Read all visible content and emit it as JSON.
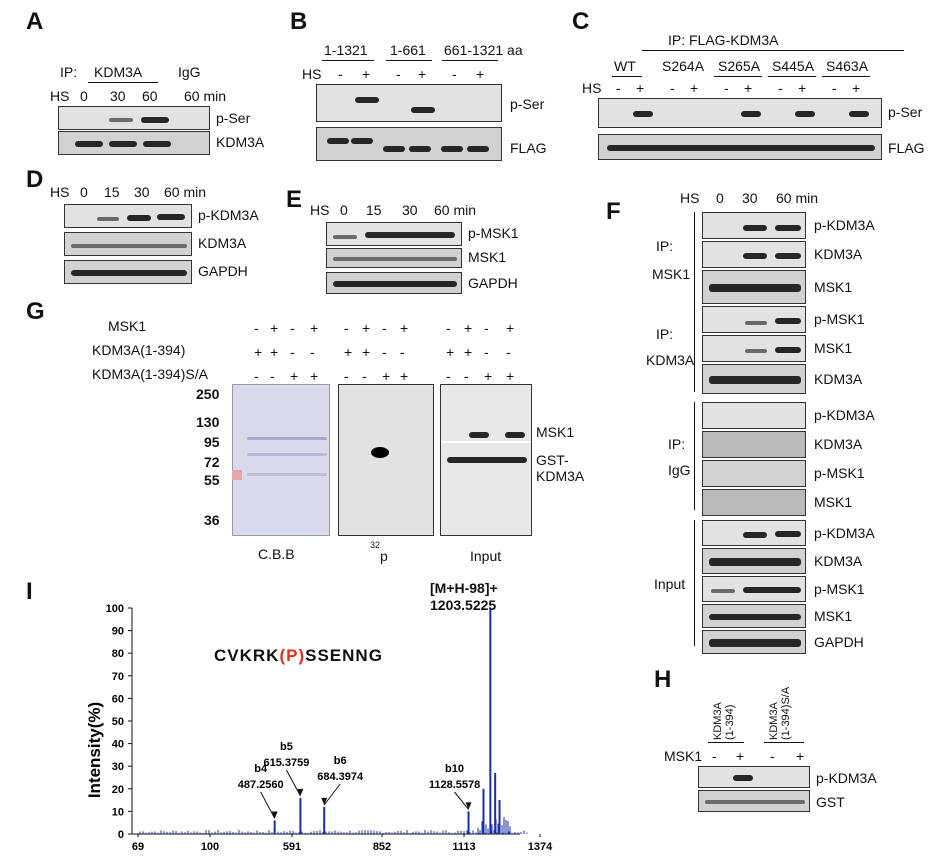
{
  "panels": {
    "A": {
      "letter": "A",
      "ip_label": "IP:",
      "ip_target": "KDM3A",
      "ip_ctrl": "IgG",
      "hs": "HS",
      "times": [
        "0",
        "30",
        "60",
        "60 min"
      ],
      "rows": [
        "p-Ser",
        "KDM3A"
      ]
    },
    "B": {
      "letter": "B",
      "constructs": [
        "1-1321",
        "1-661",
        "661-1321 aa"
      ],
      "hs": "HS",
      "signs": [
        "-",
        "+",
        "-",
        "+",
        "-",
        "+"
      ],
      "rows": [
        "p-Ser",
        "FLAG"
      ]
    },
    "C": {
      "letter": "C",
      "ip": "IP: FLAG-KDM3A",
      "mutants": [
        "WT",
        "S264A",
        "S265A",
        "S445A",
        "S463A"
      ],
      "hs": "HS",
      "signs": [
        "-",
        "+",
        "-",
        "+",
        "-",
        "+",
        "-",
        "+",
        "-",
        "+"
      ],
      "rows": [
        "p-Ser",
        "FLAG"
      ]
    },
    "D": {
      "letter": "D",
      "hs": "HS",
      "times": [
        "0",
        "15",
        "30",
        "60 min"
      ],
      "rows": [
        "p-KDM3A",
        "KDM3A",
        "GAPDH"
      ]
    },
    "E": {
      "letter": "E",
      "hs": "HS",
      "times": [
        "0",
        "15",
        "30",
        "60 min"
      ],
      "rows": [
        "p-MSK1",
        "MSK1",
        "GAPDH"
      ]
    },
    "F": {
      "letter": "F",
      "hs": "HS",
      "times": [
        "0",
        "30",
        "60 min"
      ],
      "groups": [
        {
          "ip1": "IP:",
          "ip2": "MSK1",
          "rows": [
            "p-KDM3A",
            "KDM3A",
            "MSK1"
          ]
        },
        {
          "ip1": "IP:",
          "ip2": "KDM3A",
          "rows": [
            "p-MSK1",
            "MSK1",
            "KDM3A"
          ]
        },
        {
          "ip1": "IP:",
          "ip2": "IgG",
          "rows": [
            "p-KDM3A",
            "KDM3A",
            "p-MSK1",
            "MSK1"
          ]
        },
        {
          "ip1": "Input",
          "ip2": "",
          "rows": [
            "p-KDM3A",
            "KDM3A",
            "p-MSK1",
            "MSK1",
            "GAPDH"
          ]
        }
      ]
    },
    "G": {
      "letter": "G",
      "row_labels": [
        "MSK1",
        "KDM3A(1-394)",
        "KDM3A(1-394)S/A"
      ],
      "msk1_signs": [
        "-",
        "+",
        "-",
        "+"
      ],
      "kdm_signs": [
        "+",
        "+",
        "-",
        "-"
      ],
      "sa_signs": [
        "-",
        "-",
        "+",
        "+"
      ],
      "markers": [
        "250",
        "130",
        "95",
        "72",
        "55",
        "36"
      ],
      "sub": [
        "C.B.B",
        "32",
        "p",
        "Input"
      ],
      "bands": [
        "MSK1",
        "GST-",
        "KDM3A"
      ]
    },
    "H": {
      "letter": "H",
      "cols": [
        "KDM3A",
        "(1-394)",
        "KDM3A",
        "(1-394)S/A"
      ],
      "msk1": "MSK1",
      "signs": [
        "-",
        "+",
        "-",
        "+"
      ],
      "rows": [
        "p-KDM3A",
        "GST"
      ]
    },
    "I": {
      "letter": "I",
      "peptide_pre": "CVKRK",
      "peptide_mod": "(P)",
      "peptide_post": "SSENNG",
      "ylabel": "Intensity(%)",
      "peak_label": "[M+H-98]+",
      "peak_mass": "1203.5225",
      "annotations": [
        {
          "ion": "b4",
          "mz": "487.2560"
        },
        {
          "ion": "b5",
          "mz": "615.3759"
        },
        {
          "ion": "b6",
          "mz": "684.3974"
        },
        {
          "ion": "b10",
          "mz": "1128.5578"
        }
      ]
    }
  },
  "chart_data": {
    "type": "bar",
    "title": "",
    "xlabel": "",
    "ylabel": "Intensity(%)",
    "xticks": [
      "69",
      "100",
      "591",
      "852",
      "1113",
      "1374"
    ],
    "yticks": [
      "0",
      "10",
      "20",
      "30",
      "40",
      "50",
      "60",
      "70",
      "80",
      "90",
      "100"
    ],
    "ylim": [
      0,
      100
    ],
    "peaks": [
      {
        "x": 487.256,
        "y": 6,
        "label": "b4 487.2560"
      },
      {
        "x": 615.3759,
        "y": 16,
        "label": "b5 615.3759"
      },
      {
        "x": 684.3974,
        "y": 12,
        "label": "b6 684.3974"
      },
      {
        "x": 1128.5578,
        "y": 10,
        "label": "b10 1128.5578"
      },
      {
        "x": 1180,
        "y": 20,
        "label": ""
      },
      {
        "x": 1203.5225,
        "y": 100,
        "label": "[M+H-98]+ 1203.5225"
      },
      {
        "x": 1220,
        "y": 27,
        "label": ""
      },
      {
        "x": 1235,
        "y": 15,
        "label": ""
      }
    ]
  }
}
